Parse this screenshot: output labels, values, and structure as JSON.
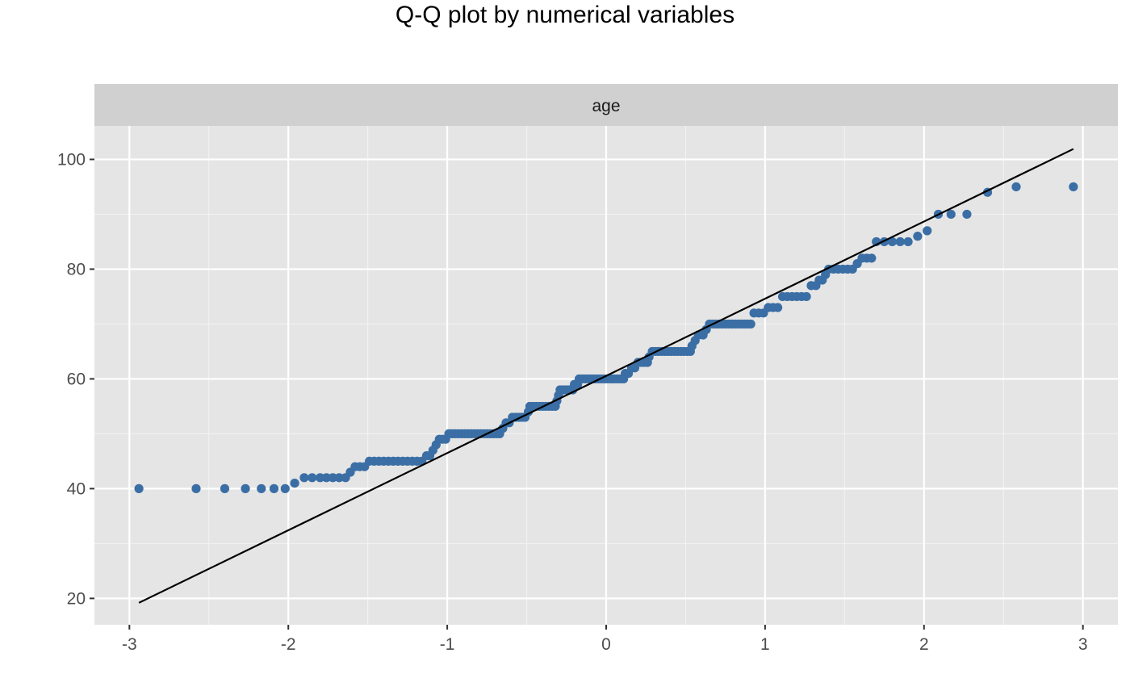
{
  "chart_data": {
    "type": "scatter",
    "title": "Q-Q plot by numerical variables",
    "facet_label": "age",
    "xlabel": "",
    "ylabel": "",
    "xlim": [
      -3.22,
      3.22
    ],
    "ylim": [
      15.2,
      106.1
    ],
    "x_ticks": [
      -3,
      -2,
      -1,
      0,
      1,
      2,
      3
    ],
    "x_tick_labels": [
      "-3",
      "-2",
      "-1",
      "0",
      "1",
      "2",
      "3"
    ],
    "y_ticks": [
      20,
      40,
      60,
      80,
      100
    ],
    "y_tick_labels": [
      "20",
      "40",
      "60",
      "80",
      "100"
    ],
    "grid": true,
    "legend": "none",
    "point_color": "#3a6ea5",
    "line_color": "#000000",
    "panel_background": "#e5e5e5",
    "strip_background": "#d0d0d0",
    "reference_line": {
      "x": [
        -2.94,
        2.94
      ],
      "y": [
        19.2,
        101.9
      ]
    },
    "points": [
      [
        -2.94,
        40
      ],
      [
        -2.58,
        40
      ],
      [
        -2.4,
        40
      ],
      [
        -2.27,
        40
      ],
      [
        -2.17,
        40
      ],
      [
        -2.09,
        40
      ],
      [
        -2.02,
        40
      ],
      [
        -1.96,
        41
      ],
      [
        -1.9,
        42
      ],
      [
        -1.85,
        42
      ],
      [
        -1.8,
        42
      ],
      [
        -1.76,
        42
      ],
      [
        -1.72,
        42
      ],
      [
        -1.68,
        42
      ],
      [
        -1.64,
        42
      ],
      [
        -1.61,
        43
      ],
      [
        -1.58,
        44
      ],
      [
        -1.55,
        44
      ],
      [
        -1.52,
        44
      ],
      [
        -1.49,
        45
      ],
      [
        -1.46,
        45
      ],
      [
        -1.43,
        45
      ],
      [
        -1.4,
        45
      ],
      [
        -1.37,
        45
      ],
      [
        -1.34,
        45
      ],
      [
        -1.31,
        45
      ],
      [
        -1.28,
        45
      ],
      [
        -1.25,
        45
      ],
      [
        -1.22,
        45
      ],
      [
        -1.19,
        45
      ],
      [
        -1.16,
        45
      ],
      [
        -1.13,
        46
      ],
      [
        -1.11,
        46
      ],
      [
        -1.09,
        47
      ],
      [
        -1.07,
        48
      ],
      [
        -1.05,
        49
      ],
      [
        -1.03,
        49
      ],
      [
        -1.01,
        49
      ],
      [
        -0.99,
        50
      ],
      [
        -0.97,
        50
      ],
      [
        -0.95,
        50
      ],
      [
        -0.93,
        50
      ],
      [
        -0.91,
        50
      ],
      [
        -0.89,
        50
      ],
      [
        -0.87,
        50
      ],
      [
        -0.85,
        50
      ],
      [
        -0.83,
        50
      ],
      [
        -0.81,
        50
      ],
      [
        -0.79,
        50
      ],
      [
        -0.77,
        50
      ],
      [
        -0.75,
        50
      ],
      [
        -0.73,
        50
      ],
      [
        -0.71,
        50
      ],
      [
        -0.69,
        50
      ],
      [
        -0.67,
        50
      ],
      [
        -0.65,
        51
      ],
      [
        -0.63,
        52
      ],
      [
        -0.61,
        52
      ],
      [
        -0.59,
        53
      ],
      [
        -0.57,
        53
      ],
      [
        -0.55,
        53
      ],
      [
        -0.53,
        53
      ],
      [
        -0.51,
        53
      ],
      [
        -0.49,
        54
      ],
      [
        -0.48,
        55
      ],
      [
        -0.46,
        55
      ],
      [
        -0.44,
        55
      ],
      [
        -0.42,
        55
      ],
      [
        -0.4,
        55
      ],
      [
        -0.38,
        55
      ],
      [
        -0.36,
        55
      ],
      [
        -0.34,
        55
      ],
      [
        -0.32,
        55
      ],
      [
        -0.31,
        56
      ],
      [
        -0.3,
        57
      ],
      [
        -0.29,
        58
      ],
      [
        -0.27,
        58
      ],
      [
        -0.25,
        58
      ],
      [
        -0.23,
        58
      ],
      [
        -0.21,
        58
      ],
      [
        -0.2,
        59
      ],
      [
        -0.18,
        59
      ],
      [
        -0.17,
        60
      ],
      [
        -0.15,
        60
      ],
      [
        -0.13,
        60
      ],
      [
        -0.11,
        60
      ],
      [
        -0.09,
        60
      ],
      [
        -0.07,
        60
      ],
      [
        -0.05,
        60
      ],
      [
        -0.03,
        60
      ],
      [
        -0.01,
        60
      ],
      [
        0.01,
        60
      ],
      [
        0.03,
        60
      ],
      [
        0.05,
        60
      ],
      [
        0.07,
        60
      ],
      [
        0.09,
        60
      ],
      [
        0.11,
        60
      ],
      [
        0.12,
        61
      ],
      [
        0.14,
        61
      ],
      [
        0.16,
        62
      ],
      [
        0.18,
        62
      ],
      [
        0.2,
        63
      ],
      [
        0.22,
        63
      ],
      [
        0.24,
        63
      ],
      [
        0.26,
        63
      ],
      [
        0.27,
        64
      ],
      [
        0.29,
        65
      ],
      [
        0.31,
        65
      ],
      [
        0.33,
        65
      ],
      [
        0.35,
        65
      ],
      [
        0.37,
        65
      ],
      [
        0.39,
        65
      ],
      [
        0.41,
        65
      ],
      [
        0.43,
        65
      ],
      [
        0.45,
        65
      ],
      [
        0.47,
        65
      ],
      [
        0.49,
        65
      ],
      [
        0.51,
        65
      ],
      [
        0.53,
        65
      ],
      [
        0.54,
        66
      ],
      [
        0.56,
        67
      ],
      [
        0.58,
        68
      ],
      [
        0.61,
        68
      ],
      [
        0.63,
        69
      ],
      [
        0.65,
        70
      ],
      [
        0.67,
        70
      ],
      [
        0.69,
        70
      ],
      [
        0.71,
        70
      ],
      [
        0.73,
        70
      ],
      [
        0.75,
        70
      ],
      [
        0.77,
        70
      ],
      [
        0.79,
        70
      ],
      [
        0.81,
        70
      ],
      [
        0.83,
        70
      ],
      [
        0.85,
        70
      ],
      [
        0.87,
        70
      ],
      [
        0.89,
        70
      ],
      [
        0.91,
        70
      ],
      [
        0.93,
        72
      ],
      [
        0.96,
        72
      ],
      [
        0.99,
        72
      ],
      [
        1.02,
        73
      ],
      [
        1.05,
        73
      ],
      [
        1.08,
        73
      ],
      [
        1.11,
        75
      ],
      [
        1.14,
        75
      ],
      [
        1.17,
        75
      ],
      [
        1.2,
        75
      ],
      [
        1.23,
        75
      ],
      [
        1.26,
        75
      ],
      [
        1.29,
        77
      ],
      [
        1.32,
        77
      ],
      [
        1.34,
        78
      ],
      [
        1.36,
        78
      ],
      [
        1.38,
        79
      ],
      [
        1.4,
        80
      ],
      [
        1.43,
        80
      ],
      [
        1.46,
        80
      ],
      [
        1.49,
        80
      ],
      [
        1.52,
        80
      ],
      [
        1.55,
        80
      ],
      [
        1.58,
        81
      ],
      [
        1.61,
        82
      ],
      [
        1.64,
        82
      ],
      [
        1.67,
        82
      ],
      [
        1.7,
        85
      ],
      [
        1.75,
        85
      ],
      [
        1.8,
        85
      ],
      [
        1.85,
        85
      ],
      [
        1.9,
        85
      ],
      [
        1.96,
        86
      ],
      [
        2.02,
        87
      ],
      [
        2.09,
        90
      ],
      [
        2.17,
        90
      ],
      [
        2.27,
        90
      ],
      [
        2.4,
        94
      ],
      [
        2.58,
        95
      ],
      [
        2.94,
        95
      ]
    ]
  }
}
